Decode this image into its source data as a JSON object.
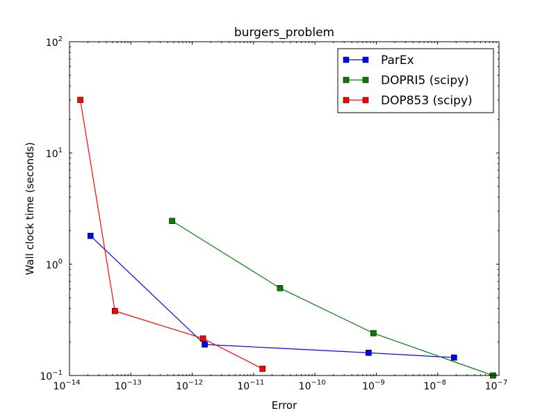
{
  "chart_data": {
    "type": "line",
    "title": "burgers_problem",
    "xlabel": "Error",
    "ylabel": "Wall clock time (seconds)",
    "xscale": "log",
    "yscale": "log",
    "xlim": [
      1e-14,
      1e-07
    ],
    "ylim": [
      0.1,
      100
    ],
    "grid": false,
    "legend_position": "top-right",
    "x_ticks": [
      {
        "value": 1e-14,
        "base": "10",
        "exp": "−14"
      },
      {
        "value": 1e-13,
        "base": "10",
        "exp": "−13"
      },
      {
        "value": 1e-12,
        "base": "10",
        "exp": "−12"
      },
      {
        "value": 1e-11,
        "base": "10",
        "exp": "−11"
      },
      {
        "value": 1e-10,
        "base": "10",
        "exp": "−10"
      },
      {
        "value": 1e-09,
        "base": "10",
        "exp": "−9"
      },
      {
        "value": 1e-08,
        "base": "10",
        "exp": "−8"
      },
      {
        "value": 1e-07,
        "base": "10",
        "exp": "−7"
      }
    ],
    "y_ticks": [
      {
        "value": 0.1,
        "base": "10",
        "exp": "−1"
      },
      {
        "value": 1,
        "base": "10",
        "exp": "0"
      },
      {
        "value": 10,
        "base": "10",
        "exp": "1"
      },
      {
        "value": 100,
        "base": "10",
        "exp": "2"
      }
    ],
    "series": [
      {
        "name": "ParEx",
        "color": "#0000ff",
        "points": [
          {
            "x": 2.2e-14,
            "y": 1.8
          },
          {
            "x": 1.6e-12,
            "y": 0.19
          },
          {
            "x": 7.5e-10,
            "y": 0.16
          },
          {
            "x": 1.85e-08,
            "y": 0.145
          }
        ]
      },
      {
        "name": "DOPRI5 (scipy)",
        "color": "#008000",
        "points": [
          {
            "x": 4.7e-13,
            "y": 2.45
          },
          {
            "x": 2.7e-11,
            "y": 0.61
          },
          {
            "x": 9e-10,
            "y": 0.24
          },
          {
            "x": 8e-08,
            "y": 0.1
          }
        ]
      },
      {
        "name": "DOP853 (scipy)",
        "color": "#ff0000",
        "points": [
          {
            "x": 1.5e-14,
            "y": 30
          },
          {
            "x": 5.5e-14,
            "y": 0.38
          },
          {
            "x": 1.5e-12,
            "y": 0.215
          },
          {
            "x": 1.4e-11,
            "y": 0.115
          }
        ]
      }
    ]
  }
}
